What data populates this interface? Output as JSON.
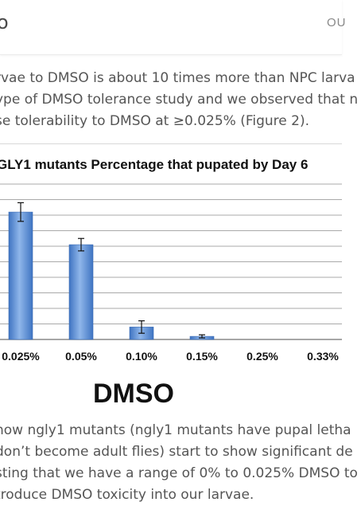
{
  "header": {
    "brand": "o",
    "nav_link": "OU"
  },
  "content": {
    "paragraph1": [
      "rvae to DMSO is about 10 times more than NPC larva",
      "ype of DMSO tolerance study and we observed that n",
      "se tolerability to DMSO at  ≥0.025% (Figure 2)."
    ],
    "paragraph2": [
      " how ngly1 mutants (ngly1 mutants have pupal letha",
      " don’t become adult flies) start to show significant de",
      "sting that we have a range of 0% to 0.025% DMSO to",
      "troduce DMSO toxicity into our larvae."
    ]
  },
  "chart_data": {
    "type": "bar",
    "title": "GLY1 mutants Percentage that pupated by Day 6",
    "xlabel": "DMSO",
    "ylabel": "",
    "categories": [
      "0.025%",
      "0.05%",
      "0.10%",
      "0.15%",
      "0.25%",
      "0.33%"
    ],
    "values": [
      82,
      61,
      8,
      2,
      0,
      0
    ],
    "errors": [
      6,
      4,
      4,
      1,
      0,
      0
    ],
    "ylim": [
      0,
      100
    ],
    "grid": true,
    "bar_color": "#5b8fd4"
  }
}
